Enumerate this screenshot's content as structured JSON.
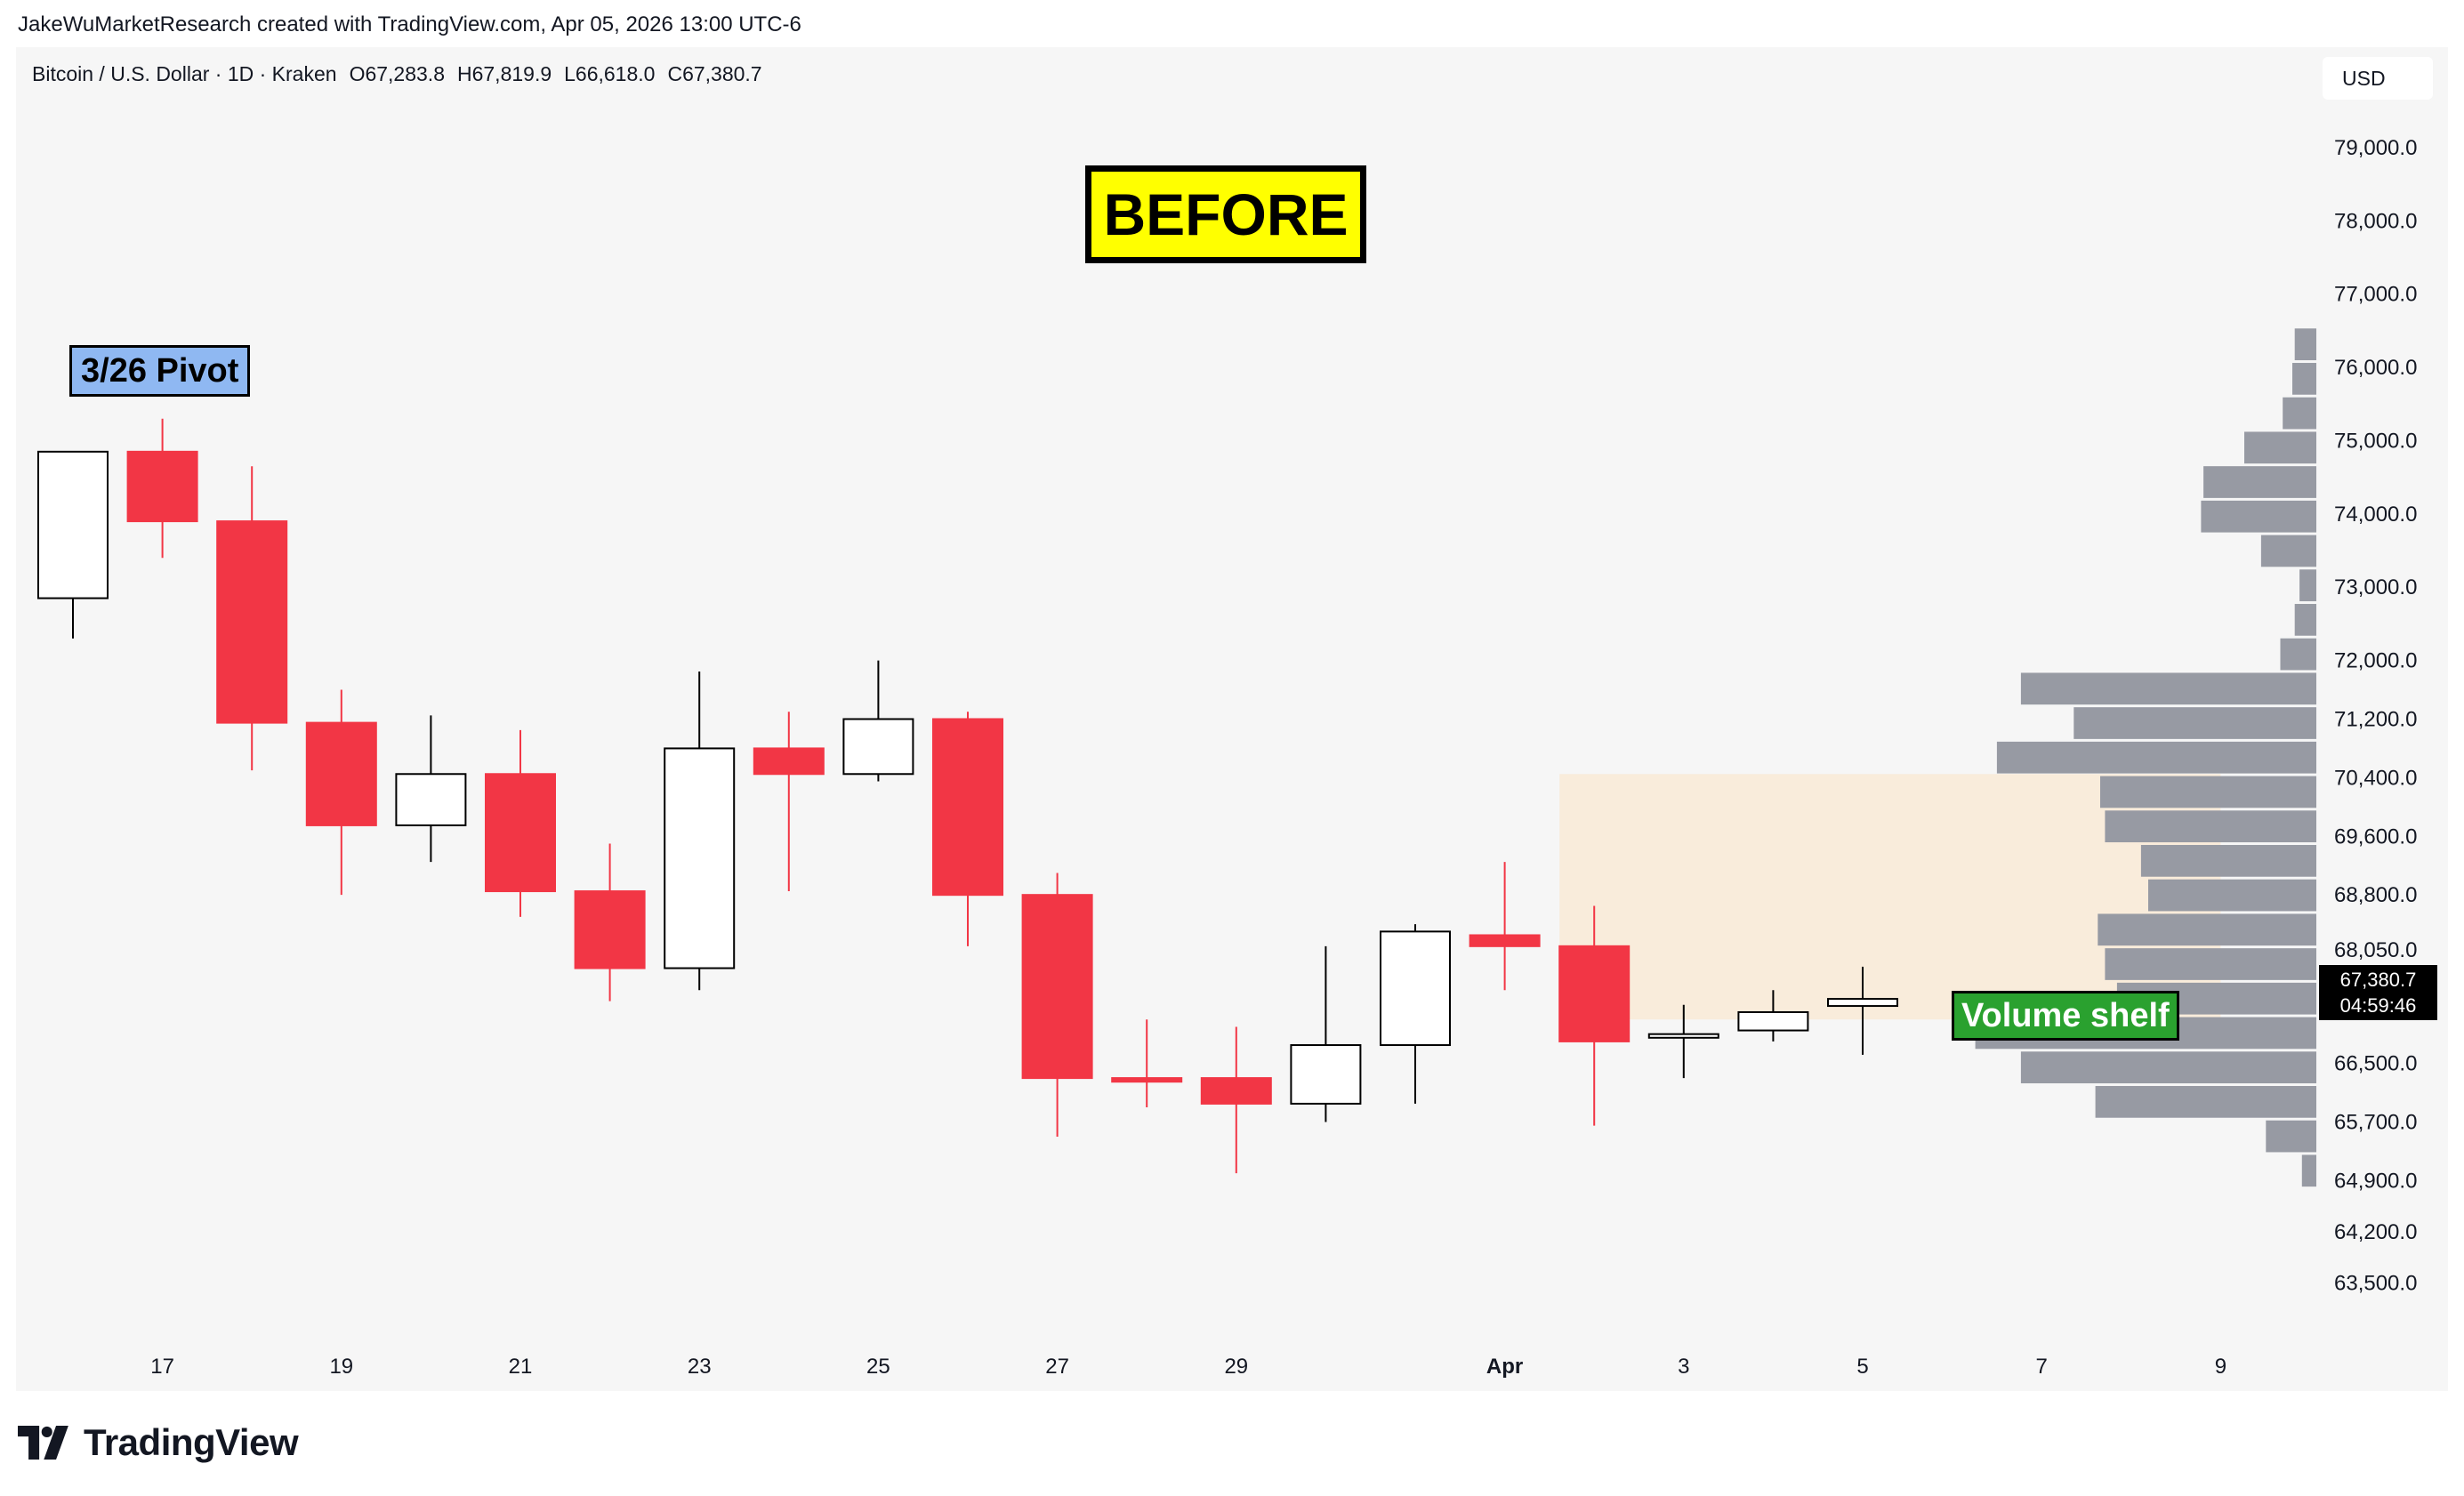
{
  "attribution": "JakeWuMarketResearch created with TradingView.com, Apr 05, 2026 13:00 UTC-6",
  "header": {
    "symbol": "Bitcoin / U.S. Dollar · 1D · Kraken",
    "open": "O67,283.8",
    "high": "H67,819.9",
    "low": "L66,618.0",
    "close": "C67,380.7",
    "currency": "USD"
  },
  "annotations": {
    "before": "BEFORE",
    "pivot": "3/26 Pivot",
    "volume_shelf": "Volume shelf"
  },
  "price_badge": {
    "price": "67,380.7",
    "countdown": "04:59:46"
  },
  "logo": {
    "text": "TradingView",
    "icon": "tradingview-logo-icon"
  },
  "colors": {
    "down": "#f23645",
    "up_fill": "#ffffff",
    "up_border": "#000000",
    "volume_bar": "#979aa3",
    "highlight_zone": "#f9ecdb",
    "panel": "#f6f6f6"
  },
  "chart_data": {
    "type": "candlestick",
    "title": "Bitcoin / U.S. Dollar · 1D · Kraken",
    "x_tick_labels": [
      "17",
      "19",
      "21",
      "23",
      "25",
      "27",
      "29",
      "Apr",
      "3",
      "5",
      "7",
      "9"
    ],
    "y_tick_labels": [
      "79,000.0",
      "78,000.0",
      "77,000.0",
      "76,000.0",
      "75,000.0",
      "74,000.0",
      "73,000.0",
      "72,000.0",
      "71,200.0",
      "70,400.0",
      "69,600.0",
      "68,800.0",
      "68,050.0",
      "67,380.7",
      "66,500.0",
      "65,700.0",
      "64,900.0",
      "64,200.0",
      "63,500.0"
    ],
    "ylim": [
      63000,
      79700
    ],
    "candles": [
      {
        "date": "Mar 16",
        "open": 72850,
        "high": 74850,
        "low": 72300,
        "close": 74850
      },
      {
        "date": "Mar 17",
        "open": 74850,
        "high": 75300,
        "low": 73400,
        "close": 73900
      },
      {
        "date": "Mar 18",
        "open": 73900,
        "high": 74650,
        "low": 70500,
        "close": 71150
      },
      {
        "date": "Mar 19",
        "open": 71150,
        "high": 71600,
        "low": 68800,
        "close": 69750
      },
      {
        "date": "Mar 20",
        "open": 69750,
        "high": 71250,
        "low": 69250,
        "close": 70450
      },
      {
        "date": "Mar 21",
        "open": 70450,
        "high": 71050,
        "low": 68500,
        "close": 68850
      },
      {
        "date": "Mar 22",
        "open": 68850,
        "high": 69500,
        "low": 67350,
        "close": 67800
      },
      {
        "date": "Mar 23",
        "open": 67800,
        "high": 71850,
        "low": 67500,
        "close": 70800
      },
      {
        "date": "Mar 24",
        "open": 70800,
        "high": 71300,
        "low": 68850,
        "close": 70450
      },
      {
        "date": "Mar 25",
        "open": 70450,
        "high": 72000,
        "low": 70350,
        "close": 71200
      },
      {
        "date": "Mar 26",
        "open": 71200,
        "high": 71300,
        "low": 68100,
        "close": 68800
      },
      {
        "date": "Mar 27",
        "open": 68800,
        "high": 69100,
        "low": 65500,
        "close": 66300
      },
      {
        "date": "Mar 28",
        "open": 66300,
        "high": 67100,
        "low": 65900,
        "close": 66250
      },
      {
        "date": "Mar 29",
        "open": 66300,
        "high": 67000,
        "low": 65000,
        "close": 65950
      },
      {
        "date": "Mar 30",
        "open": 65950,
        "high": 68100,
        "low": 65700,
        "close": 66750
      },
      {
        "date": "Mar 31",
        "open": 66750,
        "high": 68400,
        "low": 65950,
        "close": 68300
      },
      {
        "date": "Apr 01",
        "open": 68250,
        "high": 69250,
        "low": 67500,
        "close": 68100
      },
      {
        "date": "Apr 02",
        "open": 68100,
        "high": 68650,
        "low": 65650,
        "close": 66800
      },
      {
        "date": "Apr 03",
        "open": 66850,
        "high": 67300,
        "low": 66300,
        "close": 66900
      },
      {
        "date": "Apr 04",
        "open": 66950,
        "high": 67500,
        "low": 66800,
        "close": 67200
      },
      {
        "date": "Apr 05",
        "open": 67283.8,
        "high": 67819.9,
        "low": 66618.0,
        "close": 67380.7
      }
    ],
    "volume_profile": {
      "bin_low": 64800,
      "bin_size": 470,
      "relative_lengths": [
        0.06,
        0.21,
        0.92,
        1.23,
        1.42,
        0.83,
        0.88,
        0.91,
        0.7,
        0.73,
        0.88,
        0.9,
        1.33,
        1.01,
        1.23,
        0.15,
        0.09,
        0.07,
        0.23,
        0.48,
        0.47,
        0.3,
        0.14,
        0.1,
        0.09
      ]
    },
    "highlight_zone": {
      "date_start": "Apr 02",
      "date_end": "Apr 09",
      "price_low": 67100,
      "price_high": 70450
    },
    "grid": false,
    "legend": "none"
  }
}
